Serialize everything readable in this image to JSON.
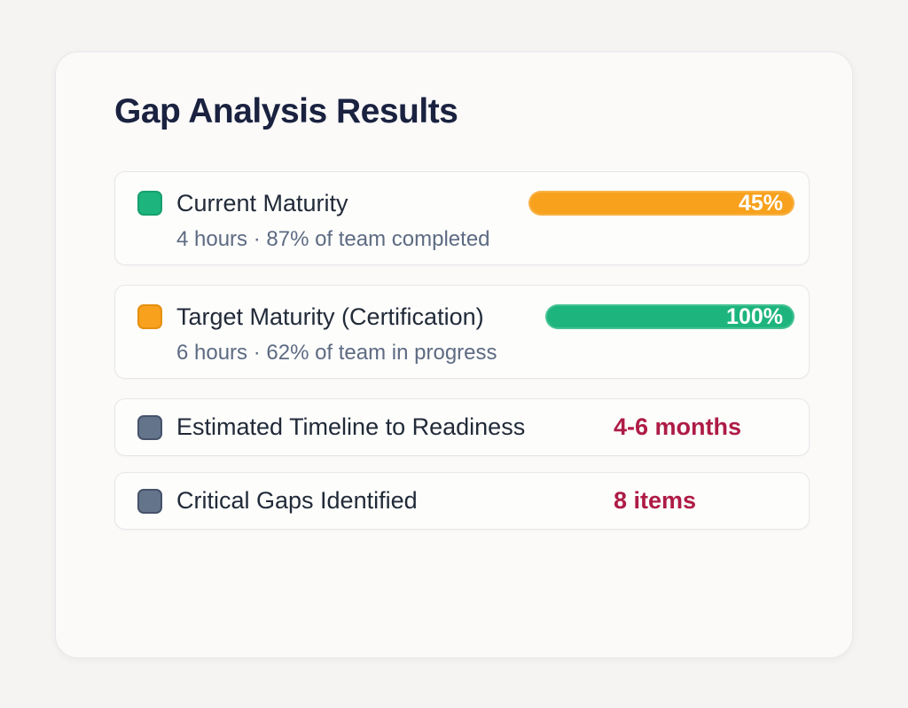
{
  "header": {
    "title": "Gap Analysis Results"
  },
  "colors": {
    "page_background": "#f6f4f2",
    "card_background": "#fbfaf9",
    "green": "#1db57d",
    "orange": "#f7a11d",
    "slate_gray": "#64748b",
    "crimson": "#ae1c45",
    "title_navy": "#1a2240",
    "subtext_gray": "#5d6b82"
  },
  "rows": [
    {
      "label": "Current Maturity",
      "subtext": "4 hours · 87% of team completed",
      "bullet_color": "#1db57d",
      "bullet_border": "#17a06e",
      "bar": {
        "value_label": "45%",
        "percent": 45,
        "color": "#f7a11d"
      }
    },
    {
      "label": "Target Maturity (Certification)",
      "subtext": "6 hours · 62% of team in progress",
      "bullet_color": "#f7a11d",
      "bullet_border": "#e5900f",
      "bar": {
        "value_label": "100%",
        "percent": 100,
        "color": "#1db57d"
      }
    },
    {
      "label": "Estimated Timeline to Readiness",
      "bullet_color": "#64748b",
      "bullet_border": "#46536a",
      "value": "4-6 months",
      "value_color": "#ae1c45"
    },
    {
      "label": "Critical Gaps Identified",
      "bullet_color": "#64748b",
      "bullet_border": "#46536a",
      "value": "8 items",
      "value_color": "#ae1c45"
    }
  ]
}
